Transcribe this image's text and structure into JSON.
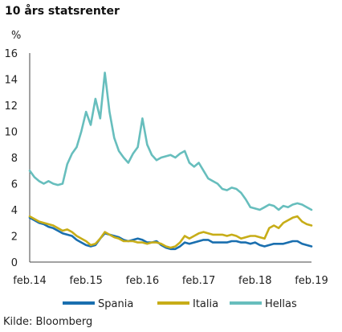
{
  "chart_data": {
    "type": "line",
    "title": "10 års statsrenter",
    "ylabel": "%",
    "xlabel": "",
    "source": "Kilde: Bloomberg",
    "ylim": [
      0,
      16
    ],
    "yticks": [
      0,
      2,
      4,
      6,
      8,
      10,
      12,
      14,
      16
    ],
    "xlim": [
      "2014-02",
      "2019-02"
    ],
    "xtick_labels": [
      "feb.14",
      "feb.15",
      "feb.16",
      "feb.17",
      "feb.18",
      "feb.19"
    ],
    "grid": false,
    "legend_position": "bottom",
    "x": [
      "2014-02",
      "2014-03",
      "2014-04",
      "2014-05",
      "2014-06",
      "2014-07",
      "2014-08",
      "2014-09",
      "2014-10",
      "2014-11",
      "2014-12",
      "2015-01",
      "2015-02",
      "2015-03",
      "2015-04",
      "2015-05",
      "2015-06",
      "2015-07",
      "2015-08",
      "2015-09",
      "2015-10",
      "2015-11",
      "2015-12",
      "2016-01",
      "2016-02",
      "2016-03",
      "2016-04",
      "2016-05",
      "2016-06",
      "2016-07",
      "2016-08",
      "2016-09",
      "2016-10",
      "2016-11",
      "2016-12",
      "2017-01",
      "2017-02",
      "2017-03",
      "2017-04",
      "2017-05",
      "2017-06",
      "2017-07",
      "2017-08",
      "2017-09",
      "2017-10",
      "2017-11",
      "2017-12",
      "2018-01",
      "2018-02",
      "2018-03",
      "2018-04",
      "2018-05",
      "2018-06",
      "2018-07",
      "2018-08",
      "2018-09",
      "2018-10",
      "2018-11",
      "2018-12",
      "2019-01",
      "2019-02"
    ],
    "series": [
      {
        "name": "Spania",
        "color": "#1a6faf",
        "values": [
          3.4,
          3.2,
          3.0,
          2.9,
          2.7,
          2.6,
          2.4,
          2.2,
          2.1,
          2.0,
          1.7,
          1.5,
          1.3,
          1.2,
          1.3,
          1.8,
          2.2,
          2.1,
          2.0,
          1.9,
          1.7,
          1.6,
          1.7,
          1.8,
          1.7,
          1.5,
          1.5,
          1.6,
          1.3,
          1.1,
          1.0,
          1.0,
          1.2,
          1.5,
          1.4,
          1.5,
          1.6,
          1.7,
          1.7,
          1.5,
          1.5,
          1.5,
          1.5,
          1.6,
          1.6,
          1.5,
          1.5,
          1.4,
          1.5,
          1.3,
          1.2,
          1.3,
          1.4,
          1.4,
          1.4,
          1.5,
          1.6,
          1.6,
          1.4,
          1.3,
          1.2
        ]
      },
      {
        "name": "Italia",
        "color": "#c7ad18",
        "values": [
          3.5,
          3.3,
          3.1,
          3.0,
          2.9,
          2.8,
          2.6,
          2.4,
          2.5,
          2.3,
          2.0,
          1.8,
          1.6,
          1.3,
          1.4,
          1.8,
          2.3,
          2.1,
          1.9,
          1.8,
          1.6,
          1.6,
          1.6,
          1.5,
          1.5,
          1.4,
          1.5,
          1.5,
          1.4,
          1.2,
          1.1,
          1.2,
          1.5,
          2.0,
          1.8,
          2.0,
          2.2,
          2.3,
          2.2,
          2.1,
          2.1,
          2.1,
          2.0,
          2.1,
          2.0,
          1.8,
          1.9,
          2.0,
          2.0,
          1.9,
          1.8,
          2.6,
          2.8,
          2.6,
          3.0,
          3.2,
          3.4,
          3.5,
          3.1,
          2.9,
          2.8
        ]
      },
      {
        "name": "Hellas",
        "color": "#67bebd",
        "values": [
          7.0,
          6.5,
          6.2,
          6.0,
          6.2,
          6.0,
          5.9,
          6.0,
          7.5,
          8.3,
          8.8,
          10.0,
          11.5,
          10.5,
          12.5,
          11.0,
          14.5,
          11.5,
          9.5,
          8.5,
          8.0,
          7.6,
          8.3,
          8.8,
          11.0,
          9.0,
          8.2,
          7.8,
          8.0,
          8.1,
          8.2,
          8.0,
          8.3,
          8.5,
          7.6,
          7.3,
          7.6,
          7.0,
          6.4,
          6.2,
          6.0,
          5.6,
          5.5,
          5.7,
          5.6,
          5.3,
          4.8,
          4.2,
          4.1,
          4.0,
          4.2,
          4.4,
          4.3,
          4.0,
          4.3,
          4.2,
          4.4,
          4.5,
          4.4,
          4.2,
          4.0
        ]
      }
    ]
  }
}
